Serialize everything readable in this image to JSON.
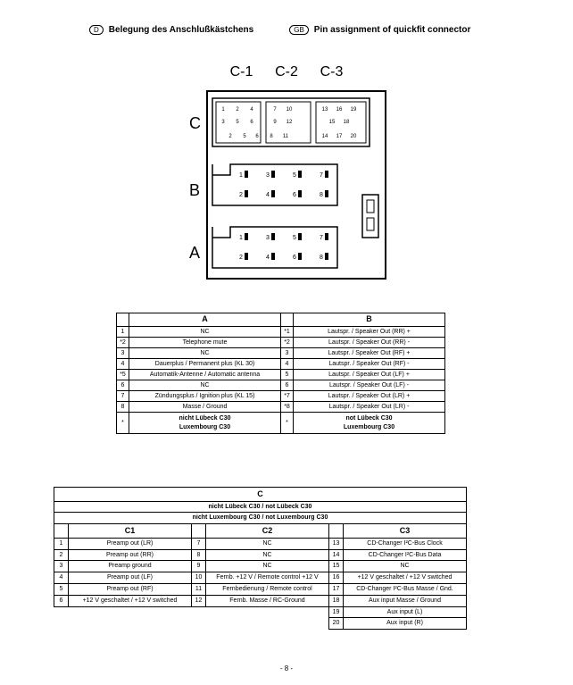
{
  "header": {
    "de_lang": "D",
    "de_text": "Belegung des Anschlußkästchens",
    "en_lang": "GB",
    "en_text": "Pin assignment of quickfit connector"
  },
  "col_labels": {
    "c1": "C-1",
    "c2": "C-2",
    "c3": "C-3"
  },
  "row_labels": {
    "a": "A",
    "b": "B",
    "c": "C"
  },
  "tableAB": {
    "colA": "A",
    "colB": "B",
    "rows": [
      {
        "n1": "1",
        "a": "NC",
        "n2": "*1",
        "b": "Lautspr. / Speaker Out (RR) +"
      },
      {
        "n1": "*2",
        "a": "Telephone mute",
        "n2": "*2",
        "b": "Lautspr. / Speaker Out (RR) -"
      },
      {
        "n1": "3",
        "a": "NC",
        "n2": "3",
        "b": "Lautspr. / Speaker Out (RF) +"
      },
      {
        "n1": "4",
        "a": "Dauerplus / Permanent plus (KL 30)",
        "n2": "4",
        "b": "Lautspr. / Speaker Out (RF) -"
      },
      {
        "n1": "*5",
        "a": "Automatik-Antenne / Automatic antenna",
        "n2": "5",
        "b": "Lautspr. / Speaker Out (LF) +"
      },
      {
        "n1": "6",
        "a": "NC",
        "n2": "6",
        "b": "Lautspr. / Speaker Out (LF) -"
      },
      {
        "n1": "7",
        "a": "Zündungsplus / Ignition plus (KL 15)",
        "n2": "*7",
        "b": "Lautspr. / Speaker Out (LR) +"
      },
      {
        "n1": "8",
        "a": "Masse / Ground",
        "n2": "*8",
        "b": "Lautspr. / Speaker Out (LR) -"
      }
    ],
    "note": {
      "s1": "*",
      "a": "nicht   Lübeck C30\nLuxembourg C30",
      "s2": "*",
      "b": "not   Lübeck C30\nLuxembourg C30"
    }
  },
  "tableC": {
    "colC": "C",
    "sub1": "nicht Lübeck C30 / not Lübeck C30",
    "sub2": "nicht Luxembourg C30 / not Luxembourg C30",
    "h1": "C1",
    "h2": "C2",
    "h3": "C3",
    "rows": [
      {
        "n1": "1",
        "c1": "Preamp out (LR)",
        "n2": "7",
        "c2": "NC",
        "n3": "13",
        "c3": "CD-Changer I²C-Bus Clock"
      },
      {
        "n1": "2",
        "c1": "Preamp out (RR)",
        "n2": "8",
        "c2": "NC",
        "n3": "14",
        "c3": "CD-Changer I²C-Bus Data"
      },
      {
        "n1": "3",
        "c1": "Preamp ground",
        "n2": "9",
        "c2": "NC",
        "n3": "15",
        "c3": "NC"
      },
      {
        "n1": "4",
        "c1": "Preamp out (LF)",
        "n2": "10",
        "c2": "Fernb. +12 V / Remote control +12 V",
        "n3": "16",
        "c3": "+12 V geschaltet / +12 V switched"
      },
      {
        "n1": "5",
        "c1": "Preamp out (RF)",
        "n2": "11",
        "c2": "Fernbedienung / Remote control",
        "n3": "17",
        "c3": "CD-Changer I²C-Bus Masse / Gnd."
      },
      {
        "n1": "6",
        "c1": "+12 V geschaltet / +12 V switched",
        "n2": "12",
        "c2": "Fernb. Masse / RC-Ground",
        "n3": "18",
        "c3": "Aux input Masse / Ground"
      }
    ],
    "extra": [
      {
        "n3": "19",
        "c3": "Aux input (L)"
      },
      {
        "n3": "20",
        "c3": "Aux input (R)"
      }
    ]
  },
  "page": "- 8 -"
}
